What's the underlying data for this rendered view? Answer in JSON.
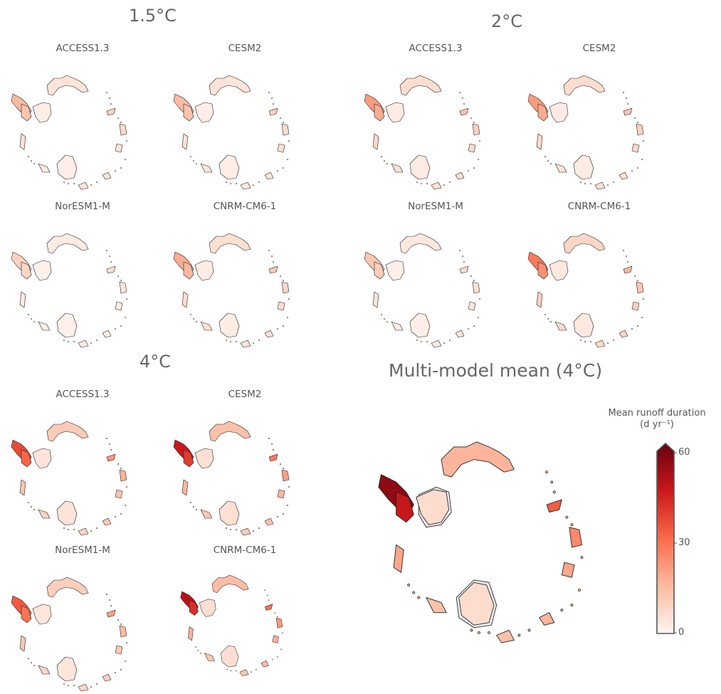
{
  "groups": [
    {
      "title": "1.5°C",
      "panels": [
        {
          "model": "ACCESS1.3",
          "intensity": 0.25
        },
        {
          "model": "CESM2",
          "intensity": 0.25
        },
        {
          "model": "NorESM1-M",
          "intensity": 0.15
        },
        {
          "model": "CNRM-CM6-1",
          "intensity": 0.3
        }
      ]
    },
    {
      "title": "2°C",
      "panels": [
        {
          "model": "ACCESS1.3",
          "intensity": 0.35
        },
        {
          "model": "CESM2",
          "intensity": 0.35
        },
        {
          "model": "NorESM1-M",
          "intensity": 0.2
        },
        {
          "model": "CNRM-CM6-1",
          "intensity": 0.45
        }
      ]
    },
    {
      "title": "4°C",
      "panels": [
        {
          "model": "ACCESS1.3",
          "intensity": 0.6
        },
        {
          "model": "CESM2",
          "intensity": 0.75
        },
        {
          "model": "NorESM1-M",
          "intensity": 0.55
        },
        {
          "model": "CNRM-CM6-1",
          "intensity": 0.8
        }
      ]
    }
  ],
  "mean": {
    "title": "Multi-model mean (4°C)",
    "colorbar": {
      "label_line1": "Mean runoff duration",
      "label_line2": "(d yr⁻¹)",
      "ticks": [
        "0",
        "30",
        "60"
      ],
      "min": 0,
      "max": 60,
      "colors": [
        "#fff5f0",
        "#fcbba1",
        "#fb6a4a",
        "#cb181d",
        "#67000d"
      ]
    }
  }
}
